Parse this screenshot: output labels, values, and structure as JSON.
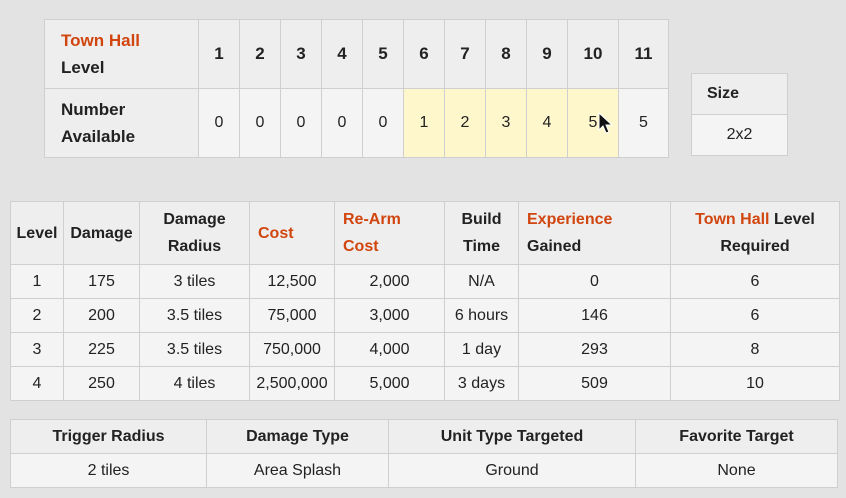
{
  "availability": {
    "row1_label_highlight": "Town Hall",
    "row1_label_rest": "Level",
    "row2_label_line1": "Number",
    "row2_label_line2": "Available",
    "levels": [
      "1",
      "2",
      "3",
      "4",
      "5",
      "6",
      "7",
      "8",
      "9",
      "10",
      "11"
    ],
    "counts": [
      "0",
      "0",
      "0",
      "0",
      "0",
      "1",
      "2",
      "3",
      "4",
      "5",
      "5"
    ]
  },
  "size": {
    "header": "Size",
    "value": "2x2"
  },
  "stats": {
    "headers": {
      "level": "Level",
      "damage": "Damage",
      "damage_radius_1": "Damage",
      "damage_radius_2": "Radius",
      "cost": "Cost",
      "rearm_1": "Re-Arm",
      "rearm_2": "Cost",
      "build_1": "Build",
      "build_2": "Time",
      "exp_1": "Experience",
      "exp_2": "Gained",
      "th_highlight": "Town Hall",
      "th_rest": " Level",
      "th_2": "Required"
    },
    "rows": [
      [
        "1",
        "175",
        "3 tiles",
        "12,500",
        "2,000",
        "N/A",
        "0",
        "6"
      ],
      [
        "2",
        "200",
        "3.5 tiles",
        "75,000",
        "3,000",
        "6 hours",
        "146",
        "6"
      ],
      [
        "3",
        "225",
        "3.5 tiles",
        "750,000",
        "4,000",
        "1 day",
        "293",
        "8"
      ],
      [
        "4",
        "250",
        "4 tiles",
        "2,500,000",
        "5,000",
        "3 days",
        "509",
        "10"
      ]
    ]
  },
  "details": {
    "headers": [
      "Trigger Radius",
      "Damage Type",
      "Unit Type Targeted",
      "Favorite Target"
    ],
    "values": [
      "2 tiles",
      "Area Splash",
      "Ground",
      "None"
    ]
  },
  "colors": {
    "highlight_text": "#d1450f",
    "selected_cell": "#fff7cc",
    "header_bg": "#eeeeee",
    "cell_bg": "#f4f4f4"
  }
}
